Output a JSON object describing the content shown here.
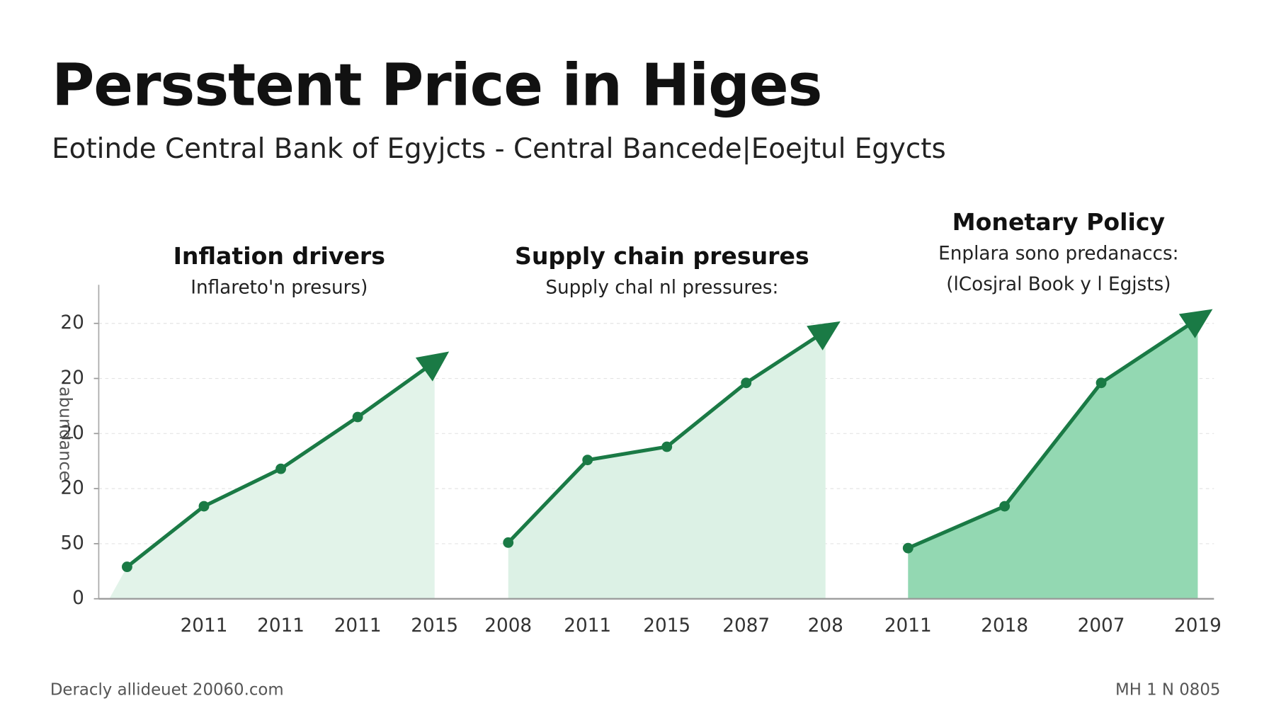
{
  "title": "Persstent Price in Higes",
  "subtitle": "Eotinde Central Bank  of Egyjcts - Central Bancede|Eoejtul Egycts",
  "footer_left": "Deracly allideuet 20060.com",
  "footer_right": "MH 1 N 0805",
  "chart_data": [
    {
      "type": "line",
      "title": "Inflation drivers",
      "subtitle": "Inflareto'n presurs)",
      "y_label": "abundance",
      "ylim": [
        0,
        285
      ],
      "yticks": [
        0,
        50,
        {
          "value": 100,
          "label": "20"
        },
        {
          "value": 150,
          "label": "20"
        },
        {
          "value": 200,
          "label": "20"
        },
        {
          "value": 250,
          "label": "20"
        }
      ],
      "grid": true,
      "categories": [
        null,
        "2011",
        "2011",
        "2011",
        "2015"
      ],
      "series": [
        {
          "color": "#1a7a45",
          "area_color": "#e2f3e9",
          "values": [
            29,
            84,
            118,
            165,
            215
          ]
        }
      ]
    },
    {
      "type": "line",
      "title": "Supply chain presures",
      "subtitle": "Supply chal nl pressures:",
      "ylim": [
        0,
        285
      ],
      "categories": [
        "2008",
        "2011",
        "2015",
        "2087",
        "208"
      ],
      "series": [
        {
          "color": "#1a7a45",
          "area_color": "#dcf1e5",
          "values": [
            51,
            126,
            138,
            196,
            243
          ]
        }
      ]
    },
    {
      "type": "line",
      "title": "Monetary Policy",
      "subtitle": "Enplara sono predanaccs:",
      "note": "(lCosjral Book y l Egjsts)",
      "ylim": [
        0,
        285
      ],
      "categories": [
        "2011",
        "2018",
        "2007",
        "2019"
      ],
      "series": [
        {
          "color": "#1a7a45",
          "area_color": "#93d8b2",
          "values": [
            46,
            84,
            196,
            254
          ]
        }
      ]
    }
  ]
}
